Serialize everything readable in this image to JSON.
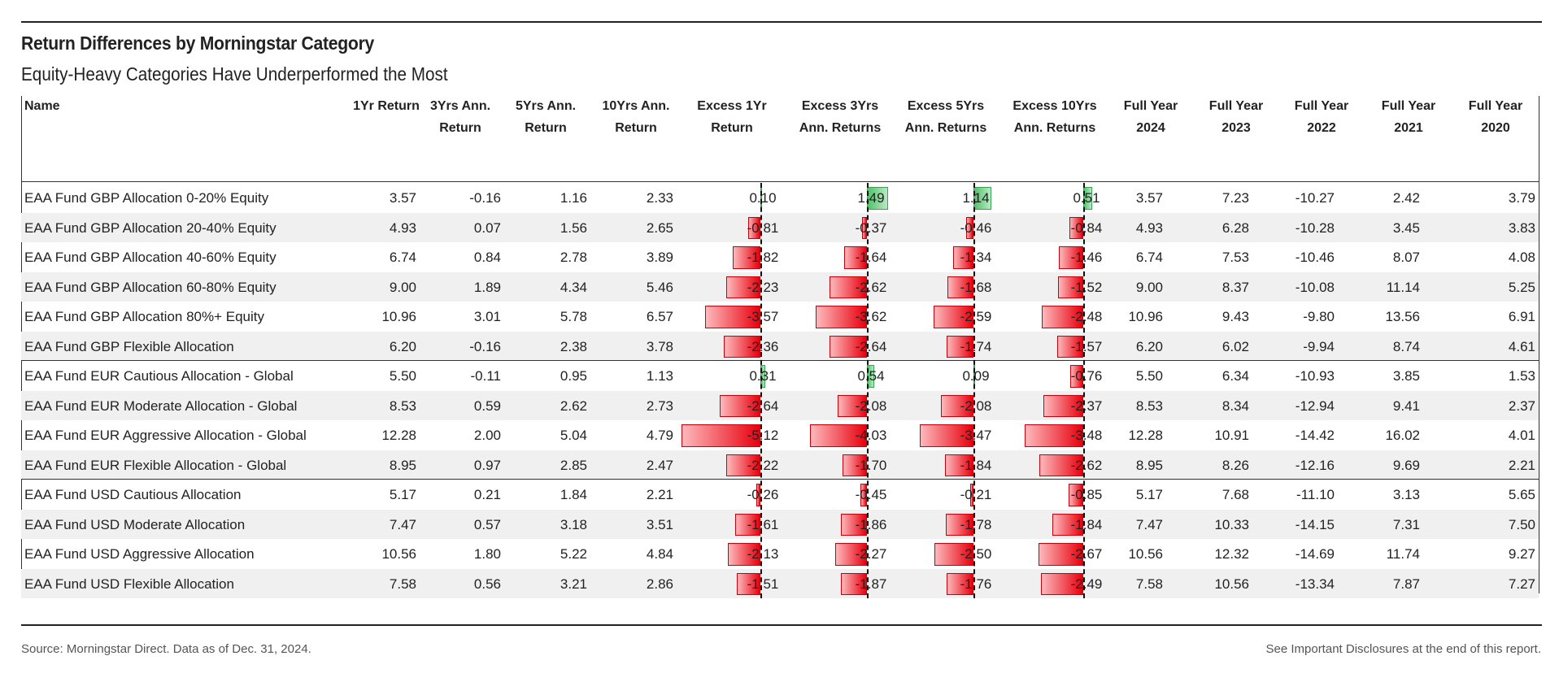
{
  "header": {
    "title": "Return Differences by Morningstar Category",
    "subtitle": "Equity-Heavy Categories Have Underperformed the Most"
  },
  "footer": {
    "source": "Source: Morningstar Direct. Data as of Dec. 31, 2024.",
    "disclosure": "See Important Disclosures at the end of this report."
  },
  "colors": {
    "negative_bar": "#e8000d",
    "positive_bar": "#52c16a",
    "row_shade": "#f0f0f0"
  },
  "chart_data": {
    "type": "table",
    "title": "Return Differences by Morningstar Category",
    "subtitle": "Equity-Heavy Categories Have Underperformed the Most",
    "columns": [
      "Name",
      "1Yr  Return",
      "3Yrs Ann.\nReturn",
      "5Yrs Ann.\nReturn",
      "10Yrs Ann.\nReturn",
      "Excess 1Yr\nReturn",
      "Excess 3Yrs\nAnn. Returns",
      "Excess 5Yrs\nAnn. Returns",
      "Excess 10Yrs\nAnn. Returns",
      "Full Year\n2024",
      "Full Year\n2023",
      "Full Year\n2022",
      "Full Year\n2021",
      "Full Year\n2020"
    ],
    "bar_columns": [
      5,
      6,
      7,
      8
    ],
    "bar_scale_max": [
      5.12,
      4.03,
      3.47,
      3.48
    ],
    "groups": [
      {
        "rows": [
          {
            "name": "EAA Fund GBP Allocation 0-20% Equity",
            "values": [
              "3.57",
              "-0.16",
              "1.16",
              "2.33",
              "0.10",
              "1.49",
              "1.14",
              "0.51",
              "3.57",
              "7.23",
              "-10.27",
              "2.42",
              "3.79"
            ]
          },
          {
            "name": "EAA Fund GBP Allocation 20-40% Equity",
            "values": [
              "4.93",
              "0.07",
              "1.56",
              "2.65",
              "-0.81",
              "-0.37",
              "-0.46",
              "-0.84",
              "4.93",
              "6.28",
              "-10.28",
              "3.45",
              "3.83"
            ]
          },
          {
            "name": "EAA Fund GBP Allocation 40-60% Equity",
            "values": [
              "6.74",
              "0.84",
              "2.78",
              "3.89",
              "-1.82",
              "-1.64",
              "-1.34",
              "-1.46",
              "6.74",
              "7.53",
              "-10.46",
              "8.07",
              "4.08"
            ]
          },
          {
            "name": "EAA Fund GBP Allocation 60-80% Equity",
            "values": [
              "9.00",
              "1.89",
              "4.34",
              "5.46",
              "-2.23",
              "-2.62",
              "-1.68",
              "-1.52",
              "9.00",
              "8.37",
              "-10.08",
              "11.14",
              "5.25"
            ]
          },
          {
            "name": "EAA Fund GBP Allocation 80%+ Equity",
            "values": [
              "10.96",
              "3.01",
              "5.78",
              "6.57",
              "-3.57",
              "-3.62",
              "-2.59",
              "-2.48",
              "10.96",
              "9.43",
              "-9.80",
              "13.56",
              "6.91"
            ]
          },
          {
            "name": "EAA Fund GBP Flexible Allocation",
            "values": [
              "6.20",
              "-0.16",
              "2.38",
              "3.78",
              "-2.36",
              "-2.64",
              "-1.74",
              "-1.57",
              "6.20",
              "6.02",
              "-9.94",
              "8.74",
              "4.61"
            ]
          }
        ]
      },
      {
        "rows": [
          {
            "name": "EAA Fund EUR Cautious Allocation - Global",
            "values": [
              "5.50",
              "-0.11",
              "0.95",
              "1.13",
              "0.31",
              "0.54",
              "0.09",
              "-0.76",
              "5.50",
              "6.34",
              "-10.93",
              "3.85",
              "1.53"
            ]
          },
          {
            "name": "EAA Fund EUR Moderate Allocation - Global",
            "values": [
              "8.53",
              "0.59",
              "2.62",
              "2.73",
              "-2.64",
              "-2.08",
              "-2.08",
              "-2.37",
              "8.53",
              "8.34",
              "-12.94",
              "9.41",
              "2.37"
            ]
          },
          {
            "name": "EAA Fund EUR Aggressive Allocation - Global",
            "values": [
              "12.28",
              "2.00",
              "5.04",
              "4.79",
              "-5.12",
              "-4.03",
              "-3.47",
              "-3.48",
              "12.28",
              "10.91",
              "-14.42",
              "16.02",
              "4.01"
            ]
          },
          {
            "name": "EAA Fund EUR Flexible Allocation - Global",
            "values": [
              "8.95",
              "0.97",
              "2.85",
              "2.47",
              "-2.22",
              "-1.70",
              "-1.84",
              "-2.62",
              "8.95",
              "8.26",
              "-12.16",
              "9.69",
              "2.21"
            ]
          }
        ]
      },
      {
        "rows": [
          {
            "name": "EAA Fund USD Cautious Allocation",
            "values": [
              "5.17",
              "0.21",
              "1.84",
              "2.21",
              "-0.26",
              "-0.45",
              "-0.21",
              "-0.85",
              "5.17",
              "7.68",
              "-11.10",
              "3.13",
              "5.65"
            ]
          },
          {
            "name": "EAA Fund USD Moderate Allocation",
            "values": [
              "7.47",
              "0.57",
              "3.18",
              "3.51",
              "-1.61",
              "-1.86",
              "-1.78",
              "-1.84",
              "7.47",
              "10.33",
              "-14.15",
              "7.31",
              "7.50"
            ]
          },
          {
            "name": "EAA Fund USD Aggressive Allocation",
            "values": [
              "10.56",
              "1.80",
              "5.22",
              "4.84",
              "-2.13",
              "-2.27",
              "-2.50",
              "-2.67",
              "10.56",
              "12.32",
              "-14.69",
              "11.74",
              "9.27"
            ]
          },
          {
            "name": "EAA Fund USD Flexible Allocation",
            "values": [
              "7.58",
              "0.56",
              "3.21",
              "2.86",
              "-1.51",
              "-1.87",
              "-1.76",
              "-2.49",
              "7.58",
              "10.56",
              "-13.34",
              "7.87",
              "7.27"
            ]
          }
        ]
      }
    ]
  }
}
